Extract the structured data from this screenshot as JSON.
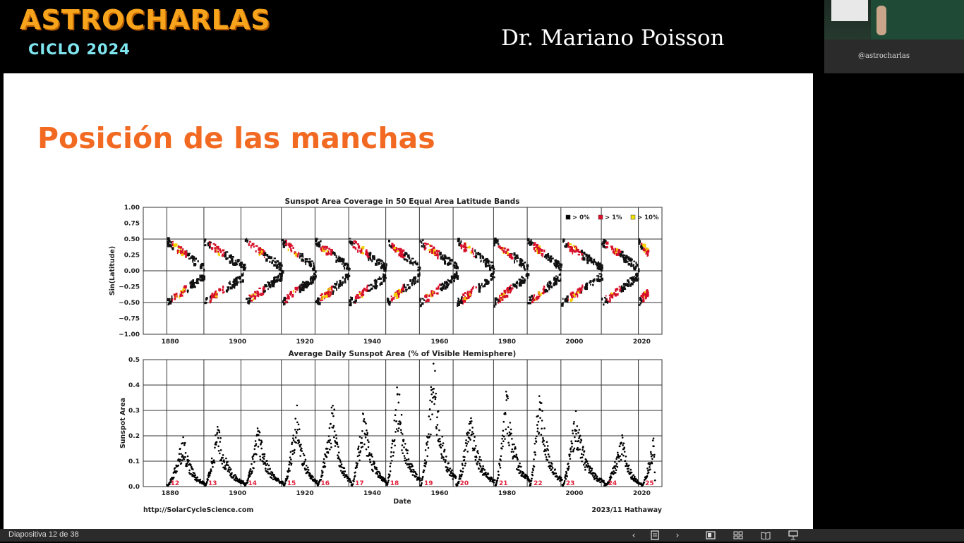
{
  "header": {
    "brand": "ASTROCHARLAS",
    "cycle": "CICLO 2024",
    "speaker": "Dr. Mariano Poisson"
  },
  "camera": {
    "overlay_text": "@astrocharlas"
  },
  "slide": {
    "title": "Posición de las manchas"
  },
  "colors": {
    "title": "#f26a22",
    "brand": "#f7a41c",
    "cycle": "#7fe6ef",
    "cycle_label": "#e0203a"
  },
  "chart_data": [
    {
      "type": "heatmap",
      "title": "Sunspot Area Coverage in 50 Equal Area Latitude Bands",
      "xlabel": "",
      "ylabel": "Sin(Latitude)",
      "xlim": [
        1872,
        2026
      ],
      "ylim": [
        -1.0,
        1.0
      ],
      "x_ticks": [
        "1880",
        "1900",
        "1920",
        "1940",
        "1960",
        "1980",
        "2000",
        "2020"
      ],
      "y_ticks": [
        "1.00",
        "0.75",
        "0.50",
        "0.25",
        "0.00",
        "−0.25",
        "−0.50",
        "−0.75",
        "−1.00"
      ],
      "legend": [
        {
          "label": "> 0%",
          "color": "#000000"
        },
        {
          "label": "> 1%",
          "color": "#e0102a"
        },
        {
          "label": "> 10%",
          "color": "#f3e200"
        }
      ],
      "legend_position": "top-right",
      "cycle_starts": [
        1879,
        1890,
        1902,
        1913,
        1923,
        1933,
        1944,
        1954,
        1965,
        1976,
        1986,
        1996,
        2008,
        2019
      ],
      "vertical_gridlines": [
        1879,
        1890,
        1901,
        1913,
        1923,
        1933,
        1944,
        1954,
        1964,
        1976,
        1986,
        1996,
        2008,
        2019
      ]
    },
    {
      "type": "scatter",
      "title": "Average Daily Sunspot Area (% of Visible Hemisphere)",
      "xlabel": "Date",
      "ylabel": "Sunspot Area",
      "xlim": [
        1872,
        2026
      ],
      "ylim": [
        0.0,
        0.5
      ],
      "x_ticks": [
        "1880",
        "1900",
        "1920",
        "1940",
        "1960",
        "1980",
        "2000",
        "2020"
      ],
      "y_ticks": [
        "0.5",
        "0.4",
        "0.3",
        "0.2",
        "0.1",
        "0.0"
      ],
      "cycles": [
        {
          "label": "12",
          "min": 1879,
          "max": 1883.9,
          "peak": 0.2
        },
        {
          "label": "13",
          "min": 1890.2,
          "max": 1894.0,
          "peak": 0.24
        },
        {
          "label": "14",
          "min": 1902.0,
          "max": 1906.2,
          "peak": 0.23
        },
        {
          "label": "15",
          "min": 1913.6,
          "max": 1917.6,
          "peak": 0.3
        },
        {
          "label": "16",
          "min": 1923.6,
          "max": 1928.4,
          "peak": 0.33
        },
        {
          "label": "17",
          "min": 1933.8,
          "max": 1937.4,
          "peak": 0.31
        },
        {
          "label": "18",
          "min": 1944.2,
          "max": 1947.5,
          "peak": 0.41
        },
        {
          "label": "19",
          "min": 1954.3,
          "max": 1958.2,
          "peak": 0.49
        },
        {
          "label": "20",
          "min": 1964.9,
          "max": 1969.2,
          "peak": 0.3
        },
        {
          "label": "21",
          "min": 1976.5,
          "max": 1979.9,
          "peak": 0.38
        },
        {
          "label": "22",
          "min": 1986.8,
          "max": 1989.6,
          "peak": 0.39
        },
        {
          "label": "23",
          "min": 1996.4,
          "max": 2000.3,
          "peak": 0.29
        },
        {
          "label": "24",
          "min": 2008.9,
          "max": 2014.3,
          "peak": 0.19
        },
        {
          "label": "25",
          "min": 2019.9,
          "max": 2023.8,
          "peak": 0.2
        }
      ],
      "vertical_gridlines": [
        1879,
        1890,
        1901,
        1913,
        1923,
        1933,
        1944,
        1954,
        1964,
        1976,
        1986,
        1996,
        2008,
        2019
      ]
    }
  ],
  "credits": {
    "left": "http://SolarCycleScience.com",
    "right": "2023/11 Hathaway"
  },
  "statusbar": {
    "slide_counter": "Diapositiva 12 de 38",
    "prev_icon": "‹",
    "next_icon": "›",
    "icons": [
      "notes-icon",
      "normal-view-icon",
      "slide-sorter-icon",
      "reading-view-icon",
      "presenter-view-icon"
    ]
  }
}
